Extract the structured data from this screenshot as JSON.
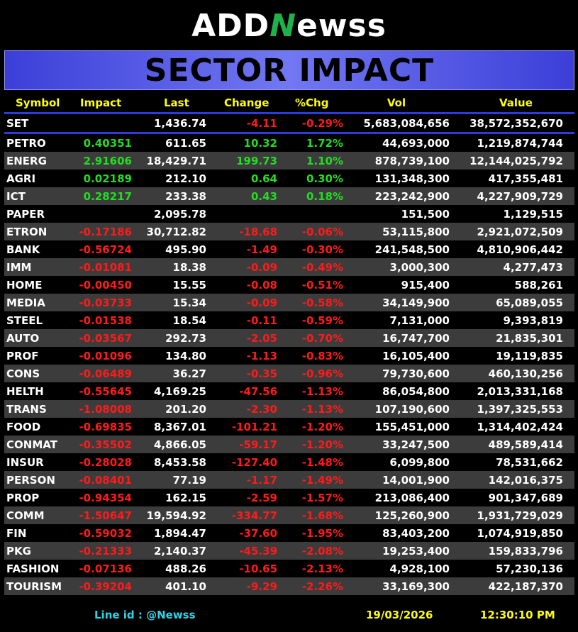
{
  "brand": {
    "prefix": "ADD",
    "accent": "N",
    "suffix": "ewss"
  },
  "title": "SECTOR IMPACT",
  "columns": [
    "Symbol",
    "Impact",
    "Last",
    "Change",
    "%Chg",
    "Vol",
    "Value"
  ],
  "index": {
    "symbol": "SET",
    "impact": "",
    "last": "1,436.74",
    "change": "-4.11",
    "pct": "-0.29%",
    "vol": "5,683,084,656",
    "value": "38,572,352,670",
    "dir": "dn"
  },
  "rows": [
    {
      "symbol": "PETRO",
      "impact": "0.40351",
      "last": "611.65",
      "change": "10.32",
      "pct": "1.72%",
      "vol": "44,693,000",
      "value": "1,219,874,744",
      "dir": "up"
    },
    {
      "symbol": "ENERG",
      "impact": "2.91606",
      "last": "18,429.71",
      "change": "199.73",
      "pct": "1.10%",
      "vol": "878,739,100",
      "value": "12,144,025,792",
      "dir": "up"
    },
    {
      "symbol": "AGRI",
      "impact": "0.02189",
      "last": "212.10",
      "change": "0.64",
      "pct": "0.30%",
      "vol": "131,348,300",
      "value": "417,355,481",
      "dir": "up"
    },
    {
      "symbol": "ICT",
      "impact": "0.28217",
      "last": "233.38",
      "change": "0.43",
      "pct": "0.18%",
      "vol": "223,242,900",
      "value": "4,227,909,729",
      "dir": "up"
    },
    {
      "symbol": "PAPER",
      "impact": "",
      "last": "2,095.78",
      "change": "",
      "pct": "",
      "vol": "151,500",
      "value": "1,129,515",
      "dir": "up"
    },
    {
      "symbol": "ETRON",
      "impact": "-0.17186",
      "last": "30,712.82",
      "change": "-18.68",
      "pct": "-0.06%",
      "vol": "53,115,800",
      "value": "2,921,072,509",
      "dir": "dn"
    },
    {
      "symbol": "BANK",
      "impact": "-0.56724",
      "last": "495.90",
      "change": "-1.49",
      "pct": "-0.30%",
      "vol": "241,548,500",
      "value": "4,810,906,442",
      "dir": "dn"
    },
    {
      "symbol": "IMM",
      "impact": "-0.01081",
      "last": "18.38",
      "change": "-0.09",
      "pct": "-0.49%",
      "vol": "3,000,300",
      "value": "4,277,473",
      "dir": "dn"
    },
    {
      "symbol": "HOME",
      "impact": "-0.00450",
      "last": "15.55",
      "change": "-0.08",
      "pct": "-0.51%",
      "vol": "915,400",
      "value": "588,261",
      "dir": "dn"
    },
    {
      "symbol": "MEDIA",
      "impact": "-0.03733",
      "last": "15.34",
      "change": "-0.09",
      "pct": "-0.58%",
      "vol": "34,149,900",
      "value": "65,089,055",
      "dir": "dn"
    },
    {
      "symbol": "STEEL",
      "impact": "-0.01538",
      "last": "18.54",
      "change": "-0.11",
      "pct": "-0.59%",
      "vol": "7,131,000",
      "value": "9,393,819",
      "dir": "dn"
    },
    {
      "symbol": "AUTO",
      "impact": "-0.03567",
      "last": "292.73",
      "change": "-2.05",
      "pct": "-0.70%",
      "vol": "16,747,700",
      "value": "21,835,301",
      "dir": "dn"
    },
    {
      "symbol": "PROF",
      "impact": "-0.01096",
      "last": "134.80",
      "change": "-1.13",
      "pct": "-0.83%",
      "vol": "16,105,400",
      "value": "19,119,835",
      "dir": "dn"
    },
    {
      "symbol": "CONS",
      "impact": "-0.06489",
      "last": "36.27",
      "change": "-0.35",
      "pct": "-0.96%",
      "vol": "79,730,600",
      "value": "460,130,256",
      "dir": "dn"
    },
    {
      "symbol": "HELTH",
      "impact": "-0.55645",
      "last": "4,169.25",
      "change": "-47.56",
      "pct": "-1.13%",
      "vol": "86,054,800",
      "value": "2,013,331,168",
      "dir": "dn"
    },
    {
      "symbol": "TRANS",
      "impact": "-1.08008",
      "last": "201.20",
      "change": "-2.30",
      "pct": "-1.13%",
      "vol": "107,190,600",
      "value": "1,397,325,553",
      "dir": "dn"
    },
    {
      "symbol": "FOOD",
      "impact": "-0.69835",
      "last": "8,367.01",
      "change": "-101.21",
      "pct": "-1.20%",
      "vol": "155,451,000",
      "value": "1,314,402,424",
      "dir": "dn"
    },
    {
      "symbol": "CONMAT",
      "impact": "-0.35502",
      "last": "4,866.05",
      "change": "-59.17",
      "pct": "-1.20%",
      "vol": "33,247,500",
      "value": "489,589,414",
      "dir": "dn"
    },
    {
      "symbol": "INSUR",
      "impact": "-0.28028",
      "last": "8,453.58",
      "change": "-127.40",
      "pct": "-1.48%",
      "vol": "6,099,800",
      "value": "78,531,662",
      "dir": "dn"
    },
    {
      "symbol": "PERSON",
      "impact": "-0.08401",
      "last": "77.19",
      "change": "-1.17",
      "pct": "-1.49%",
      "vol": "14,001,900",
      "value": "142,016,375",
      "dir": "dn"
    },
    {
      "symbol": "PROP",
      "impact": "-0.94354",
      "last": "162.15",
      "change": "-2.59",
      "pct": "-1.57%",
      "vol": "213,086,400",
      "value": "901,347,689",
      "dir": "dn"
    },
    {
      "symbol": "COMM",
      "impact": "-1.50647",
      "last": "19,594.92",
      "change": "-334.77",
      "pct": "-1.68%",
      "vol": "125,260,900",
      "value": "1,931,729,029",
      "dir": "dn"
    },
    {
      "symbol": "FIN",
      "impact": "-0.59032",
      "last": "1,894.47",
      "change": "-37.60",
      "pct": "-1.95%",
      "vol": "83,403,200",
      "value": "1,074,919,850",
      "dir": "dn"
    },
    {
      "symbol": "PKG",
      "impact": "-0.21333",
      "last": "2,140.37",
      "change": "-45.39",
      "pct": "-2.08%",
      "vol": "19,253,400",
      "value": "159,833,796",
      "dir": "dn"
    },
    {
      "symbol": "FASHION",
      "impact": "-0.07136",
      "last": "488.26",
      "change": "-10.65",
      "pct": "-2.13%",
      "vol": "4,928,100",
      "value": "57,230,136",
      "dir": "dn"
    },
    {
      "symbol": "TOURISM",
      "impact": "-0.39204",
      "last": "401.10",
      "change": "-9.29",
      "pct": "-2.26%",
      "vol": "33,169,300",
      "value": "422,187,370",
      "dir": "dn"
    }
  ],
  "footer": {
    "line_id": "Line id  : @Newss",
    "date": "19/03/2026",
    "time": "12:30:10 PM"
  },
  "colors": {
    "up": "#22dd22",
    "down": "#ff1a1a",
    "header": "#ffff00",
    "banner": "#5a5fe8"
  }
}
